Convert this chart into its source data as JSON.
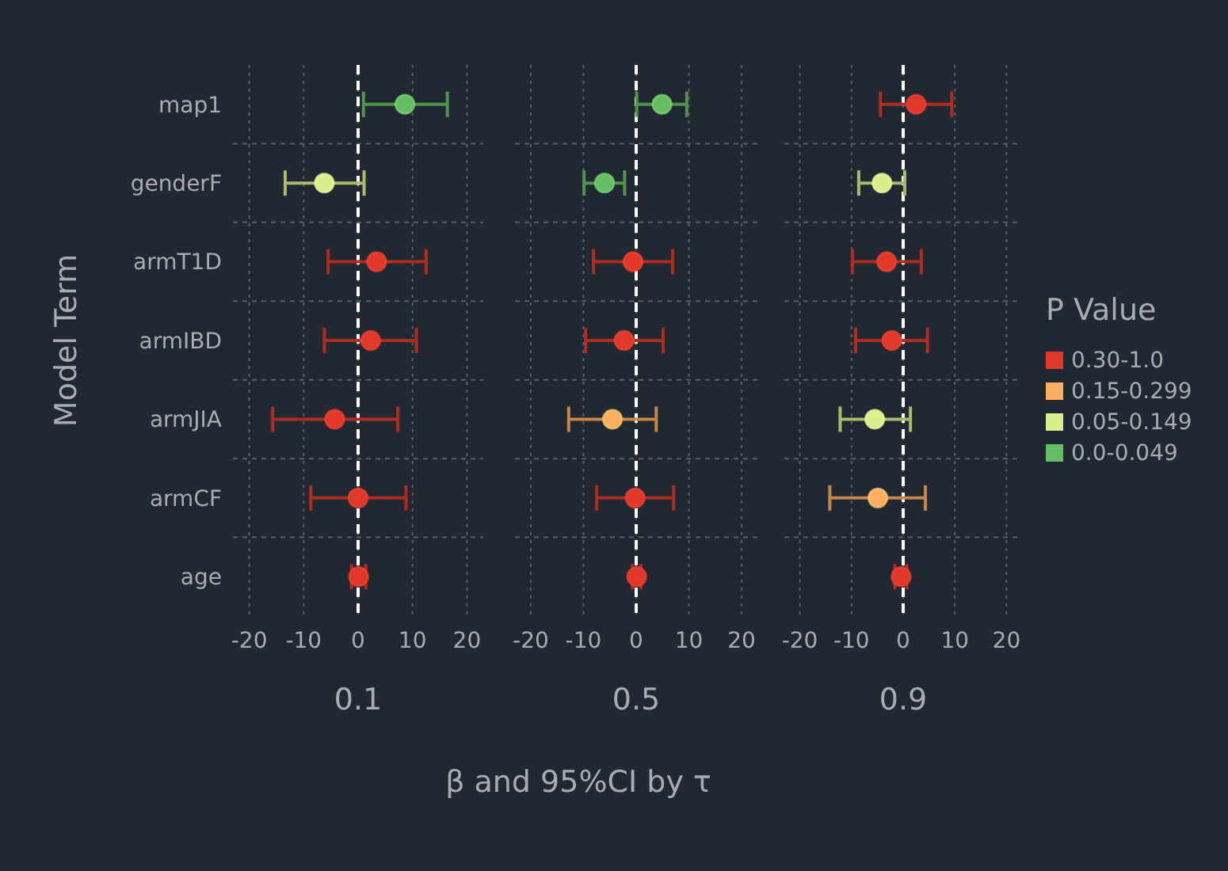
{
  "chart_data": [
    {
      "type": "scatter",
      "orientation": "horizontal",
      "title": "0.1",
      "ylabel": "Model Term",
      "categories": [
        "map1",
        "genderF",
        "armT1D",
        "armIBD",
        "armJIA",
        "armCF",
        "age"
      ],
      "xlim": [
        -23,
        23
      ],
      "xticks": [
        -20,
        -10,
        0,
        10,
        20
      ],
      "grid": true,
      "marker": "circle",
      "legend": false,
      "ref_lines": [
        {
          "axis": "x",
          "value": 0,
          "color": "#ffffff",
          "line_style": "dashed"
        }
      ],
      "series": [
        {
          "color": "#e0392b",
          "values": [
            null,
            null,
            3.4,
            2.3,
            -4.3,
            0,
            0.1
          ],
          "errors": [
            null,
            null,
            [
              -5.5,
              12.5
            ],
            [
              -6.2,
              10.7
            ],
            [
              -15.7,
              7.3
            ],
            [
              -8.7,
              8.8
            ],
            [
              -1.2,
              1.4
            ]
          ]
        },
        {
          "color": "#d9ef8b",
          "values": [
            null,
            -6.2,
            null,
            null,
            null,
            null,
            null
          ],
          "errors": [
            null,
            [
              -13.4,
              1.1
            ],
            null,
            null,
            null,
            null,
            null
          ]
        },
        {
          "color": "#66bd63",
          "values": [
            8.6,
            null,
            null,
            null,
            null,
            null,
            null
          ],
          "errors": [
            [
              1.0,
              16.4
            ],
            null,
            null,
            null,
            null,
            null,
            null
          ]
        }
      ]
    },
    {
      "type": "scatter",
      "orientation": "horizontal",
      "title": "0.5",
      "xlabel": "β and 95%CI by τ",
      "categories": [
        null,
        null,
        null,
        null,
        null,
        null,
        null
      ],
      "xlim": [
        -23,
        23
      ],
      "xticks": [
        -20,
        -10,
        0,
        10,
        20
      ],
      "grid": true,
      "marker": "circle",
      "legend": false,
      "tick_labels": "x",
      "ref_lines": [
        {
          "axis": "x",
          "value": 0,
          "color": "#ffffff",
          "line_style": "dashed"
        }
      ],
      "series": [
        {
          "color": "#e0392b",
          "values": [
            null,
            null,
            -0.6,
            -2.3,
            null,
            -0.2,
            0.1
          ],
          "errors": [
            null,
            null,
            [
              -8.1,
              6.9
            ],
            [
              -9.6,
              5.1
            ],
            null,
            [
              -7.5,
              7.1
            ],
            [
              -0.7,
              0.9
            ]
          ]
        },
        {
          "color": "#fdae61",
          "values": [
            null,
            null,
            null,
            null,
            -4.5,
            null,
            null
          ],
          "errors": [
            null,
            null,
            null,
            null,
            [
              -12.8,
              3.8
            ],
            null,
            null
          ]
        },
        {
          "color": "#66bd63",
          "values": [
            4.9,
            -6.0,
            null,
            null,
            null,
            null,
            null
          ],
          "errors": [
            [
              0.1,
              9.6
            ],
            [
              -9.9,
              -2.2
            ],
            null,
            null,
            null,
            null,
            null
          ]
        }
      ]
    },
    {
      "type": "scatter",
      "orientation": "horizontal",
      "title": "0.9",
      "legend_title": "P Value",
      "categories": [
        null,
        null,
        null,
        null,
        null,
        null,
        null
      ],
      "xlim": [
        -23,
        23
      ],
      "xticks": [
        -20,
        -10,
        0,
        10,
        20
      ],
      "grid": true,
      "marker": "circle",
      "legend": "right",
      "tick_labels": "x",
      "ref_lines": [
        {
          "axis": "x",
          "value": 0,
          "color": "#ffffff",
          "line_style": "dashed"
        }
      ],
      "series": [
        {
          "name": "0.30-1.0",
          "color": "#e0392b",
          "values": [
            2.5,
            null,
            -3.2,
            -2.2,
            null,
            null,
            -0.4
          ],
          "errors": [
            [
              -4.4,
              9.4
            ],
            null,
            [
              -9.8,
              3.5
            ],
            [
              -9.2,
              4.7
            ],
            null,
            null,
            [
              -1.6,
              0.7
            ]
          ]
        },
        {
          "name": "0.15-0.299",
          "color": "#fdae61",
          "values": [
            null,
            null,
            null,
            null,
            null,
            -4.9,
            null
          ],
          "errors": [
            null,
            null,
            null,
            null,
            null,
            [
              -14.2,
              4.3
            ],
            null
          ]
        },
        {
          "name": "0.05-0.149",
          "color": "#d9ef8b",
          "values": [
            null,
            -4.1,
            null,
            null,
            -5.5,
            null,
            null
          ],
          "errors": [
            null,
            [
              -8.6,
              0.3
            ],
            null,
            null,
            [
              -12.2,
              1.4
            ],
            null,
            null
          ]
        },
        {
          "name": "0.0-0.049",
          "color": "#66bd63",
          "values": [
            null,
            null,
            null,
            null,
            null,
            null,
            null
          ],
          "errors": [
            null,
            null,
            null,
            null,
            null,
            null,
            null
          ]
        }
      ]
    }
  ]
}
